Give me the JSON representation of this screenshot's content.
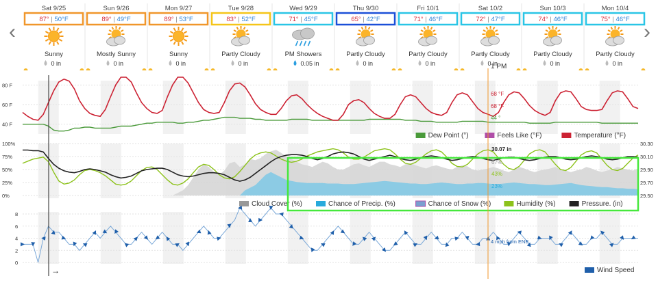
{
  "nav": {
    "prev_label": "‹",
    "next_label": "›"
  },
  "days": [
    {
      "date": "Sat 9/25",
      "high": "87°",
      "low": "50°F",
      "condition": "Sunny",
      "icon": "sun-icon",
      "precip": "0 in",
      "box_color": "#f0962a"
    },
    {
      "date": "Sun 9/26",
      "high": "89°",
      "low": "49°F",
      "condition": "Mostly Sunny",
      "icon": "partly-cloudy-icon",
      "precip": "0 in",
      "box_color": "#f0962a"
    },
    {
      "date": "Mon 9/27",
      "high": "89°",
      "low": "53°F",
      "condition": "Sunny",
      "icon": "sun-icon",
      "precip": "0 in",
      "box_color": "#f0962a"
    },
    {
      "date": "Tue 9/28",
      "high": "83°",
      "low": "52°F",
      "condition": "Partly Cloudy",
      "icon": "partly-cloudy-icon",
      "precip": "0 in",
      "box_color": "#f5c518"
    },
    {
      "date": "Wed 9/29",
      "high": "71°",
      "low": "45°F",
      "condition": "PM Showers",
      "icon": "rain-cloud-icon",
      "precip": "0.05 in",
      "box_color": "#29c5e6"
    },
    {
      "date": "Thu 9/30",
      "high": "65°",
      "low": "42°F",
      "condition": "Partly Cloudy",
      "icon": "partly-cloudy-icon",
      "precip": "0 in",
      "box_color": "#1a4fd8"
    },
    {
      "date": "Fri 10/1",
      "high": "71°",
      "low": "46°F",
      "condition": "Partly Cloudy",
      "icon": "partly-cloudy-icon",
      "precip": "0 in",
      "box_color": "#29c5e6"
    },
    {
      "date": "Sat 10/2",
      "high": "72°",
      "low": "47°F",
      "condition": "Partly Cloudy",
      "icon": "partly-cloudy-icon",
      "precip": "0 in",
      "box_color": "#29c5e6"
    },
    {
      "date": "Sun 10/3",
      "high": "74°",
      "low": "46°F",
      "condition": "Partly Cloudy",
      "icon": "partly-cloudy-icon",
      "precip": "0 in",
      "box_color": "#29c5e6"
    },
    {
      "date": "Mon 10/4",
      "high": "75°",
      "low": "46°F",
      "condition": "Partly Cloudy",
      "icon": "partly-cloudy-icon",
      "precip": "0 in",
      "box_color": "#29c5e6"
    }
  ],
  "cursor": {
    "time_label": "1 PM",
    "temp_readout": "68 °F",
    "feels_readout": "68 °F",
    "dew_readout": "44 °",
    "pressure_readout": "30.07 in",
    "cloud_readout": "67%",
    "humidity_readout": "43%",
    "precip_readout": "23%",
    "wind_readout": "4 mph from ENE"
  },
  "colors": {
    "temperature": "#cc2233",
    "dew_point": "#4a9a3a",
    "feels_like": "#b04ea8",
    "cloud": "#bbbbbb",
    "precip": "#28aadc",
    "humidity": "#8cc21a",
    "pressure": "#222222",
    "wind": "#1f5faa",
    "cursor": "#f0962a",
    "highlight": "#46e83c"
  },
  "temp_chart": {
    "y_ticks": [
      "80 F",
      "60 F",
      "40 F"
    ],
    "legend": [
      "Dew Point (°)",
      "Feels Like (°F)",
      "Temperature (°F)"
    ]
  },
  "cloud_chart": {
    "y_ticks_left": [
      "100%",
      "75%",
      "50%",
      "25%",
      "0%"
    ],
    "y_ticks_right": [
      "30.30",
      "30.10",
      "29.90",
      "29.70",
      "29.50"
    ],
    "legend": [
      "Cloud Cover (%)",
      "Chance of Precip. (%)",
      "Chance of Snow (%)",
      "Humidity (%)",
      "Pressure. (in)"
    ]
  },
  "wind_chart": {
    "y_ticks": [
      "8",
      "6",
      "4",
      "2",
      "0"
    ],
    "legend": [
      "Wind Speed"
    ]
  },
  "chart_data": {
    "type": "line",
    "x_hours_from": "Sat 9/25 00:00",
    "series": [
      {
        "name": "Temperature (°F)",
        "values": [
          52,
          48,
          45,
          44,
          50,
          62,
          74,
          83,
          86,
          84,
          76,
          64,
          56,
          51,
          49,
          48,
          55,
          68,
          80,
          88,
          88,
          83,
          72,
          62,
          56,
          52,
          51,
          54,
          68,
          80,
          88,
          88,
          82,
          72,
          62,
          55,
          52,
          51,
          52,
          62,
          74,
          81,
          82,
          78,
          70,
          61,
          55,
          52,
          50,
          50,
          56,
          64,
          69,
          70,
          66,
          60,
          55,
          51,
          48,
          46,
          44,
          44,
          50,
          60,
          64,
          65,
          62,
          56,
          51,
          48,
          46,
          46,
          50,
          60,
          68,
          70,
          68,
          62,
          56,
          52,
          50,
          49,
          52,
          62,
          70,
          72,
          70,
          63,
          56,
          52,
          50,
          48,
          52,
          62,
          70,
          73,
          72,
          66,
          59,
          54,
          51,
          49,
          52,
          64,
          72,
          74,
          73,
          66,
          58,
          55,
          54,
          54,
          55,
          64,
          72,
          74,
          73,
          66,
          58,
          56
        ]
      },
      {
        "name": "Dew Point (°)",
        "values": [
          40,
          40,
          40,
          40,
          40,
          38,
          34,
          33,
          33,
          34,
          36,
          36,
          37,
          37,
          36,
          36,
          36,
          36,
          37,
          38,
          38,
          38,
          39,
          40,
          41,
          41,
          42,
          42,
          42,
          42,
          41,
          41,
          42,
          42,
          43,
          44,
          44,
          45,
          46,
          47,
          47,
          47,
          46,
          46,
          46,
          45,
          45,
          44,
          44,
          44,
          44,
          44,
          45,
          45,
          45,
          45,
          44,
          44,
          44,
          44,
          44,
          44,
          44,
          44,
          44,
          44,
          44,
          45,
          45,
          45,
          45,
          45,
          45,
          45,
          44,
          44,
          44,
          43,
          43,
          43,
          42,
          42,
          42,
          42,
          42,
          43,
          43,
          43,
          43,
          43,
          42,
          42,
          42,
          42,
          42,
          42,
          42,
          42,
          41,
          41,
          41,
          41,
          41,
          42,
          42,
          42,
          42,
          42,
          42,
          42,
          42,
          42,
          41,
          41,
          41,
          41,
          41,
          41,
          41,
          41
        ]
      },
      {
        "name": "Cloud Cover (%)",
        "values": [
          0,
          0,
          0,
          0,
          0,
          0,
          0,
          0,
          0,
          0,
          0,
          0,
          0,
          0,
          0,
          0,
          0,
          0,
          0,
          0,
          0,
          0,
          0,
          0,
          0,
          0,
          0,
          0,
          0,
          0,
          5,
          10,
          20,
          35,
          50,
          60,
          55,
          45,
          40,
          48,
          62,
          65,
          55,
          60,
          70,
          68,
          72,
          80,
          85,
          88,
          82,
          75,
          70,
          65,
          60,
          58,
          55,
          60,
          65,
          62,
          55,
          50,
          50,
          55,
          60,
          62,
          58,
          55,
          60,
          65,
          65,
          60,
          58,
          55,
          60,
          62,
          58,
          55,
          52,
          56,
          58,
          55,
          52,
          50,
          55,
          58,
          56,
          50,
          48,
          50,
          52,
          55,
          52,
          48,
          45,
          50,
          55,
          52,
          48,
          45,
          48,
          50,
          52,
          55,
          50,
          48,
          45,
          48,
          50,
          55,
          52,
          48,
          45,
          48,
          50,
          55,
          52,
          50,
          48,
          52
        ]
      },
      {
        "name": "Chance of Precip. (%)",
        "values": [
          0,
          0,
          0,
          0,
          0,
          0,
          0,
          0,
          0,
          0,
          0,
          0,
          0,
          0,
          0,
          0,
          0,
          0,
          0,
          0,
          0,
          0,
          0,
          0,
          0,
          0,
          0,
          0,
          0,
          0,
          0,
          0,
          0,
          0,
          0,
          0,
          0,
          0,
          0,
          0,
          0,
          0,
          0,
          10,
          15,
          20,
          30,
          40,
          45,
          40,
          35,
          30,
          28,
          26,
          25,
          24,
          24,
          24,
          24,
          23,
          23,
          23,
          22,
          22,
          22,
          23,
          24,
          25,
          26,
          27,
          28,
          27,
          26,
          25,
          24,
          23,
          23,
          22,
          22,
          23,
          24,
          25,
          24,
          23,
          22,
          22,
          23,
          23,
          24,
          24,
          23,
          22,
          22,
          23,
          24,
          25,
          24,
          23,
          22,
          22,
          21,
          20,
          20,
          21,
          22,
          23,
          24,
          22,
          20,
          19,
          18,
          17,
          16,
          16,
          15,
          14,
          14,
          13,
          13,
          12
        ]
      },
      {
        "name": "Humidity (%)",
        "values": [
          62,
          66,
          70,
          72,
          74,
          65,
          45,
          28,
          22,
          24,
          30,
          40,
          48,
          50,
          48,
          44,
          38,
          30,
          22,
          20,
          22,
          28,
          38,
          48,
          54,
          55,
          50,
          40,
          30,
          22,
          20,
          24,
          32,
          44,
          55,
          60,
          58,
          50,
          40,
          34,
          32,
          36,
          46,
          58,
          70,
          78,
          82,
          84,
          82,
          76,
          70,
          66,
          64,
          66,
          70,
          76,
          80,
          84,
          86,
          88,
          90,
          88,
          82,
          74,
          70,
          70,
          74,
          80,
          86,
          88,
          90,
          88,
          80,
          70,
          62,
          60,
          64,
          72,
          80,
          86,
          88,
          84,
          74,
          62,
          56,
          55,
          60,
          70,
          80,
          86,
          88,
          84,
          72,
          60,
          52,
          50,
          56,
          68,
          80,
          86,
          88,
          84,
          72,
          60,
          50,
          48,
          54,
          66,
          78,
          84,
          86,
          82,
          70,
          58,
          50,
          48,
          52,
          62,
          72,
          78
        ]
      },
      {
        "name": "Pressure. (in)",
        "values": [
          30.2,
          30.2,
          30.19,
          30.19,
          30.17,
          30.07,
          29.98,
          29.92,
          29.88,
          29.86,
          29.85,
          29.87,
          29.9,
          29.91,
          29.9,
          29.88,
          29.86,
          29.82,
          29.79,
          29.77,
          29.78,
          29.8,
          29.84,
          29.88,
          29.9,
          29.91,
          29.92,
          29.92,
          29.9,
          29.86,
          29.82,
          29.8,
          29.79,
          29.8,
          29.82,
          29.84,
          29.85,
          29.85,
          29.84,
          29.82,
          29.78,
          29.74,
          29.72,
          29.74,
          29.78,
          29.84,
          29.9,
          29.96,
          30.02,
          30.07,
          30.1,
          30.12,
          30.13,
          30.13,
          30.12,
          30.1,
          30.07,
          30.05,
          30.07,
          30.1,
          30.14,
          30.16,
          30.17,
          30.16,
          30.14,
          30.1,
          30.06,
          30.04,
          30.06,
          30.08,
          30.1,
          30.12,
          30.1,
          30.07,
          30.05,
          30.04,
          30.06,
          30.08,
          30.1,
          30.11,
          30.1,
          30.08,
          30.06,
          30.04,
          30.05,
          30.07,
          30.09,
          30.1,
          30.09,
          30.07,
          30.05,
          30.04,
          30.06,
          30.08,
          30.09,
          30.09,
          30.07,
          30.05,
          30.04,
          30.05,
          30.07,
          30.09,
          30.1,
          30.1,
          30.08,
          30.06,
          30.05,
          30.06,
          30.08,
          30.1,
          30.11,
          30.1,
          30.08,
          30.06,
          30.05,
          30.06,
          30.08,
          30.1,
          30.1,
          30.09
        ]
      },
      {
        "name": "Wind Speed",
        "values": [
          3,
          3,
          3,
          0,
          4,
          6,
          5,
          5,
          4,
          3,
          3,
          2,
          3,
          4,
          5,
          4,
          5,
          6,
          5,
          4,
          3,
          3,
          4,
          5,
          4,
          3,
          4,
          5,
          4,
          3,
          3,
          2,
          3,
          4,
          5,
          6,
          5,
          4,
          4,
          5,
          6,
          7,
          9,
          8,
          7,
          6,
          7,
          8,
          9,
          8,
          8,
          7,
          6,
          5,
          4,
          3,
          2,
          2,
          3,
          4,
          5,
          6,
          5,
          4,
          3,
          3,
          4,
          5,
          4,
          3,
          2,
          2,
          3,
          4,
          5,
          4,
          3,
          3,
          4,
          5,
          4,
          3,
          3,
          4,
          4,
          5,
          4,
          3,
          3,
          4,
          4,
          5,
          4,
          3,
          3,
          4,
          5,
          4,
          3,
          3,
          4,
          4,
          4,
          3,
          3,
          4,
          5,
          4,
          3,
          3,
          4,
          4,
          5,
          4,
          3,
          3,
          4,
          4,
          4,
          4
        ]
      }
    ],
    "temp_ylim": [
      30,
      90
    ],
    "wind_ylim": [
      0,
      9
    ],
    "pressure_ylim": [
      29.5,
      30.3
    ]
  }
}
